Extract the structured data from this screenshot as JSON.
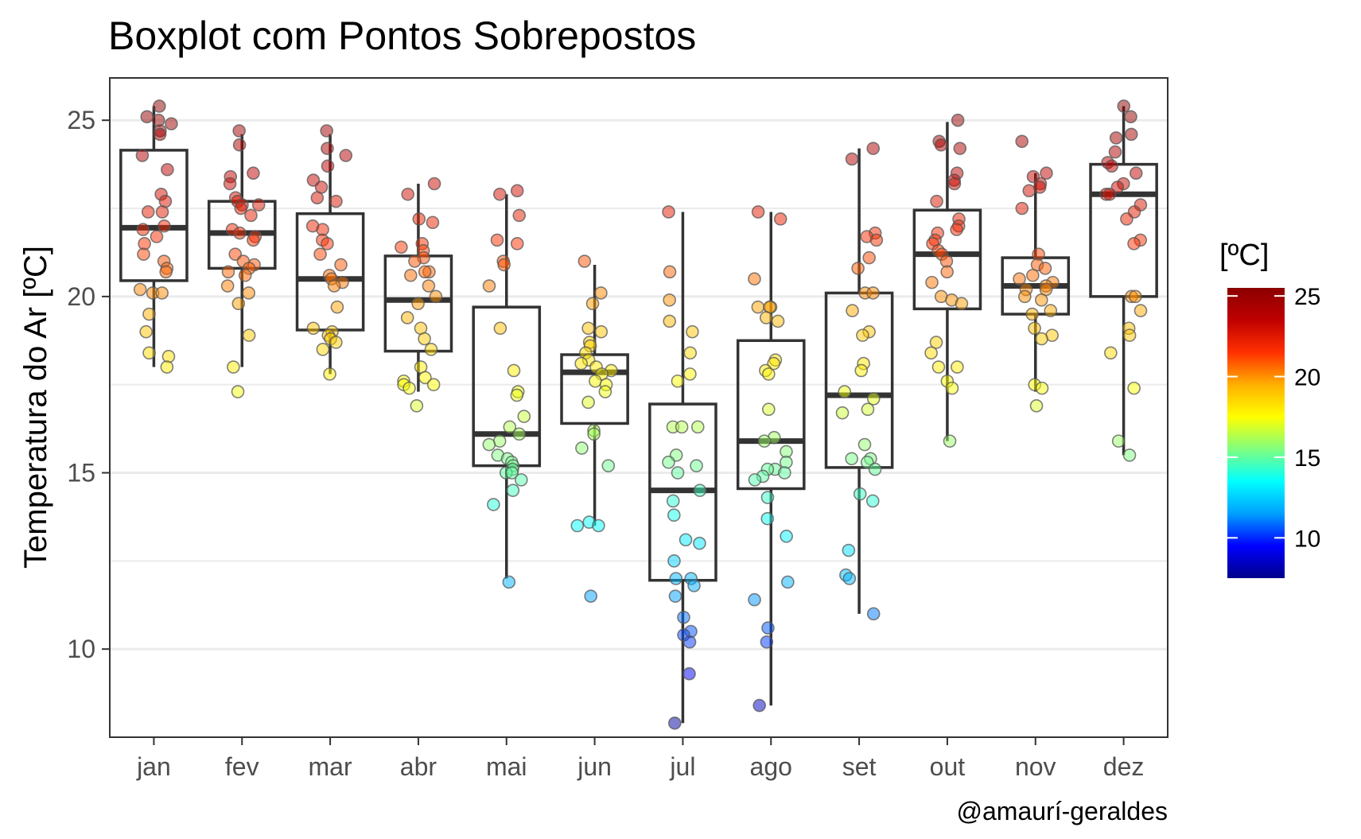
{
  "chart_data": {
    "type": "boxplot",
    "title": "Boxplot com Pontos Sobrepostos",
    "ylabel": "Temperatura do Ar [ºC]",
    "xlabel": "",
    "caption": "@amaurí-geraldes",
    "ylim": [
      7.5,
      26.2
    ],
    "yticks": [
      10,
      15,
      20,
      25
    ],
    "grid": true,
    "legend": {
      "title": "[ºC]",
      "position": "right",
      "range": [
        7.5,
        25.5
      ],
      "ticks": [
        10,
        15,
        20,
        25
      ],
      "colors": [
        "#00008b",
        "#0000ff",
        "#00a0ff",
        "#00ffff",
        "#80ff80",
        "#ffff00",
        "#ffb000",
        "#ff3000",
        "#c00000",
        "#8b0000"
      ]
    },
    "categories": [
      "jan",
      "fev",
      "mar",
      "abr",
      "mai",
      "jun",
      "jul",
      "ago",
      "set",
      "out",
      "nov",
      "dez"
    ],
    "boxes": [
      {
        "min": 18.0,
        "q1": 20.45,
        "median": 21.95,
        "q3": 24.15,
        "max": 25.4
      },
      {
        "min": 18.0,
        "q1": 20.8,
        "median": 21.8,
        "q3": 22.7,
        "max": 24.6
      },
      {
        "min": 17.8,
        "q1": 19.05,
        "median": 20.5,
        "q3": 22.35,
        "max": 24.6
      },
      {
        "min": 17.3,
        "q1": 18.45,
        "median": 19.9,
        "q3": 21.15,
        "max": 23.2
      },
      {
        "min": 12.0,
        "q1": 15.2,
        "median": 16.1,
        "q3": 19.7,
        "max": 22.9
      },
      {
        "min": 13.5,
        "q1": 16.4,
        "median": 17.85,
        "q3": 18.35,
        "max": 20.9
      },
      {
        "min": 7.9,
        "q1": 11.95,
        "median": 14.5,
        "q3": 16.95,
        "max": 22.4
      },
      {
        "min": 8.4,
        "q1": 14.55,
        "median": 15.9,
        "q3": 18.75,
        "max": 22.4
      },
      {
        "min": 11.0,
        "q1": 15.15,
        "median": 17.2,
        "q3": 20.1,
        "max": 24.2
      },
      {
        "min": 15.9,
        "q1": 19.65,
        "median": 21.2,
        "q3": 22.45,
        "max": 24.95
      },
      {
        "min": 17.3,
        "q1": 19.5,
        "median": 20.3,
        "q3": 21.1,
        "max": 23.5
      },
      {
        "min": 15.5,
        "q1": 20.0,
        "median": 22.9,
        "q3": 23.75,
        "max": 25.4
      }
    ],
    "points": [
      [
        25.4,
        25.1,
        25.0,
        24.9,
        24.7,
        24.6,
        24.0,
        23.6,
        22.9,
        22.7,
        22.4,
        22.4,
        22.0,
        21.9,
        21.7,
        21.5,
        21.2,
        21.0,
        20.8,
        20.7,
        20.2,
        20.1,
        20.1,
        19.5,
        19.0,
        18.4,
        18.3,
        18.0
      ],
      [
        24.7,
        24.3,
        23.5,
        23.4,
        23.2,
        22.8,
        22.7,
        22.6,
        22.6,
        22.5,
        22.3,
        21.9,
        21.8,
        21.7,
        21.6,
        21.2,
        21.0,
        20.9,
        20.8,
        20.7,
        20.6,
        20.3,
        20.1,
        19.8,
        18.9,
        18.0,
        17.3
      ],
      [
        24.7,
        24.2,
        24.0,
        23.7,
        23.3,
        23.1,
        22.8,
        22.7,
        22.0,
        21.9,
        21.6,
        21.5,
        21.2,
        20.9,
        20.6,
        20.5,
        20.4,
        20.3,
        19.7,
        19.1,
        19.0,
        18.9,
        18.8,
        18.7,
        18.5,
        17.8
      ],
      [
        23.2,
        22.9,
        22.2,
        22.1,
        21.5,
        21.4,
        21.3,
        21.1,
        21.0,
        20.7,
        20.7,
        20.6,
        20.3,
        20.0,
        19.8,
        19.4,
        19.1,
        18.8,
        18.5,
        18.0,
        17.7,
        17.6,
        17.5,
        17.5,
        17.4,
        16.9
      ],
      [
        23.0,
        22.9,
        22.3,
        21.6,
        21.5,
        21.0,
        20.9,
        20.3,
        19.1,
        17.9,
        17.3,
        17.2,
        16.6,
        16.3,
        16.1,
        15.9,
        15.8,
        15.5,
        15.4,
        15.3,
        15.2,
        15.1,
        15.0,
        15.0,
        14.8,
        14.5,
        14.1,
        11.9
      ],
      [
        21.0,
        20.1,
        19.8,
        19.1,
        19.0,
        18.7,
        18.6,
        18.4,
        18.2,
        18.1,
        18.0,
        17.9,
        17.8,
        17.6,
        17.5,
        17.3,
        17.0,
        16.2,
        16.1,
        15.7,
        15.2,
        13.6,
        13.5,
        13.5,
        11.5
      ],
      [
        22.4,
        20.7,
        19.9,
        19.3,
        19.0,
        18.4,
        17.8,
        17.6,
        16.3,
        16.3,
        16.3,
        15.5,
        15.3,
        15.2,
        15.0,
        14.5,
        14.2,
        13.8,
        13.1,
        13.0,
        12.5,
        12.0,
        12.0,
        11.8,
        11.5,
        10.9,
        10.5,
        10.4,
        10.2,
        9.3,
        7.9
      ],
      [
        22.4,
        22.2,
        20.5,
        19.7,
        19.7,
        19.7,
        19.4,
        19.3,
        18.2,
        18.1,
        17.9,
        17.8,
        16.8,
        16.0,
        15.9,
        15.6,
        15.3,
        15.1,
        15.1,
        15.0,
        14.9,
        14.8,
        14.3,
        13.7,
        13.2,
        11.9,
        11.4,
        10.6,
        10.2,
        8.4
      ],
      [
        24.2,
        23.9,
        21.8,
        21.7,
        21.6,
        21.1,
        20.8,
        20.1,
        20.1,
        19.6,
        19.0,
        18.9,
        18.1,
        17.9,
        17.3,
        17.1,
        16.8,
        16.7,
        15.8,
        15.4,
        15.4,
        15.3,
        15.1,
        14.4,
        14.2,
        12.8,
        12.1,
        12.0,
        11.0
      ],
      [
        25.0,
        24.4,
        24.3,
        24.2,
        23.5,
        23.3,
        23.2,
        22.7,
        22.2,
        22.0,
        21.9,
        21.8,
        21.6,
        21.5,
        21.3,
        21.2,
        21.0,
        20.7,
        20.4,
        20.0,
        19.9,
        19.8,
        18.7,
        18.4,
        18.0,
        18.0,
        17.6,
        17.4,
        15.9
      ],
      [
        24.4,
        23.5,
        23.4,
        23.2,
        23.1,
        23.0,
        22.5,
        21.2,
        20.9,
        20.8,
        20.6,
        20.5,
        20.4,
        20.3,
        20.2,
        20.2,
        20.0,
        19.9,
        19.6,
        19.5,
        19.1,
        18.9,
        18.8,
        17.5,
        17.4,
        16.9
      ],
      [
        25.4,
        25.1,
        24.6,
        24.5,
        24.1,
        23.8,
        23.7,
        23.5,
        23.2,
        23.1,
        22.9,
        22.9,
        22.6,
        22.4,
        22.2,
        21.6,
        21.5,
        20.0,
        20.0,
        19.6,
        19.1,
        18.9,
        18.4,
        17.4,
        15.9,
        15.5
      ]
    ]
  }
}
